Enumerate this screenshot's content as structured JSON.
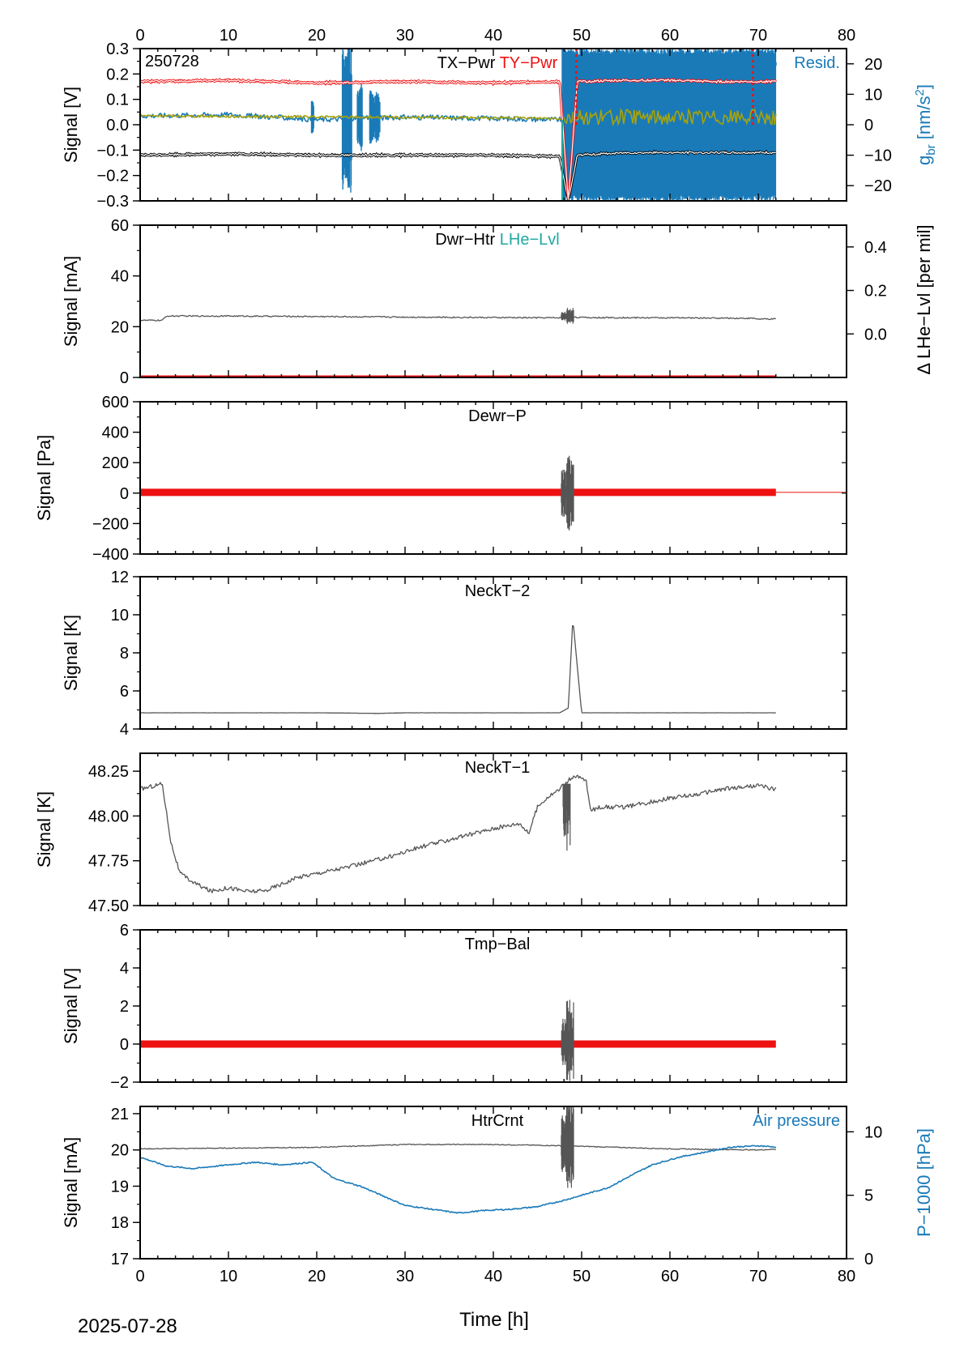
{
  "figure": {
    "date_label": "2025-07-28",
    "x_label": "Time [h]",
    "x_ticks": [
      0,
      10,
      20,
      30,
      40,
      50,
      60,
      70,
      80
    ],
    "x_range": [
      0,
      80
    ],
    "colors": {
      "trace": "#555555",
      "red": "#ee1111",
      "blue": "#1a7ab8",
      "olive": "#a6a30c",
      "teal": "#20a8a0",
      "black": "#000000"
    }
  },
  "chart_data": [
    {
      "type": "line",
      "id": "p1",
      "ylabel": "Signal [V]",
      "ylim": [
        -0.3,
        0.3
      ],
      "yticks": [
        -0.3,
        -0.2,
        -0.1,
        0.0,
        0.1,
        0.2,
        0.3
      ],
      "corner_label": "250728",
      "title_parts": [
        "TX−Pwr",
        "TY−Pwr"
      ],
      "right_legend": "Resid.",
      "y2label": "gbr [nm/s2]",
      "y2label_main": "g",
      "y2label_sub": "br",
      "y2label_unit_pre": " [nm/s",
      "y2label_unit_sup": "2",
      "y2label_unit_post": "]",
      "y2lim": [
        -25,
        25
      ],
      "y2ticks": [
        -20,
        -10,
        0,
        10,
        20
      ],
      "series": [
        {
          "name": "TX−Pwr",
          "x": [
            0,
            10,
            20,
            30,
            40,
            47.5,
            48.5,
            49.5,
            55,
            60,
            65,
            70,
            72
          ],
          "values": [
            -0.12,
            -0.115,
            -0.12,
            -0.12,
            -0.12,
            -0.125,
            -0.3,
            -0.12,
            -0.11,
            -0.11,
            -0.11,
            -0.11,
            -0.11
          ]
        },
        {
          "name": "TY−Pwr",
          "x": [
            0,
            10,
            20,
            30,
            40,
            47.5,
            48.5,
            49.5,
            55,
            60,
            65,
            70,
            72
          ],
          "values": [
            0.17,
            0.175,
            0.165,
            0.17,
            0.165,
            0.17,
            -0.3,
            0.17,
            0.175,
            0.175,
            0.17,
            0.17,
            0.17
          ]
        },
        {
          "name": "Resid.",
          "x": [
            0,
            10,
            20,
            30,
            40,
            47.5,
            72
          ],
          "values": [
            0.035,
            0.04,
            0.02,
            0.03,
            0.025,
            0.02,
            0.0
          ]
        }
      ]
    },
    {
      "type": "line",
      "id": "p2",
      "ylabel": "Signal [mA]",
      "ylim": [
        0,
        60
      ],
      "yticks": [
        0,
        20,
        40,
        60
      ],
      "title_parts": [
        "Dwr−Htr",
        "LHe−Lvl"
      ],
      "y2label": "Δ LHe−Lvl [per mil]",
      "y2lim": [
        -0.2,
        0.5
      ],
      "y2ticks": [
        0.0,
        0.2,
        0.4
      ],
      "series": [
        {
          "name": "Dwr−Htr",
          "x": [
            0,
            2.5,
            3,
            10,
            20,
            30,
            40,
            47,
            48,
            49,
            50,
            60,
            69.5,
            70,
            72
          ],
          "values": [
            22.5,
            22.5,
            24.2,
            24.2,
            24,
            23.8,
            23.6,
            23.5,
            23.5,
            23.8,
            23.6,
            23.5,
            23.3,
            23,
            23
          ]
        },
        {
          "name": "LHe−Lvl",
          "x": [
            0,
            72
          ],
          "values": [
            0.5,
            0.5
          ]
        }
      ]
    },
    {
      "type": "line",
      "id": "p3",
      "ylabel": "Signal [Pa]",
      "ylim": [
        -400,
        600
      ],
      "yticks": [
        -400,
        -200,
        0,
        200,
        400,
        600
      ],
      "title_parts": [
        "Dewr−P"
      ],
      "series": [
        {
          "name": "Dewr−P",
          "x": [
            0,
            10,
            20,
            30,
            40,
            47,
            50,
            60,
            69,
            70,
            72
          ],
          "values": [
            5,
            5,
            5,
            5,
            5,
            5,
            5,
            5,
            5,
            5,
            5
          ]
        }
      ]
    },
    {
      "type": "line",
      "id": "p4",
      "ylabel": "Signal [K]",
      "ylim": [
        4,
        12
      ],
      "yticks": [
        4,
        6,
        8,
        10,
        12
      ],
      "title_parts": [
        "NeckT−2"
      ],
      "series": [
        {
          "name": "NeckT−2",
          "x": [
            0,
            10,
            20,
            27,
            30,
            40,
            47.5,
            48.5,
            49,
            50,
            55,
            60,
            72
          ],
          "values": [
            4.85,
            4.85,
            4.85,
            4.82,
            4.85,
            4.85,
            4.85,
            5.1,
            9.8,
            4.85,
            4.85,
            4.85,
            4.85
          ]
        }
      ]
    },
    {
      "type": "line",
      "id": "p5",
      "ylabel": "Signal [K]",
      "ylim": [
        47.5,
        48.35
      ],
      "yticks": [
        47.5,
        47.75,
        48.0,
        48.25
      ],
      "title_parts": [
        "NeckT−1"
      ],
      "series": [
        {
          "name": "NeckT−1",
          "x": [
            0,
            2.5,
            3.5,
            4.5,
            6,
            8,
            10,
            12,
            14,
            16,
            18,
            20,
            24,
            28,
            32,
            36,
            40,
            43,
            44,
            44.5,
            45,
            46,
            47.5,
            48.5,
            49.5,
            50.5,
            51,
            52,
            55,
            58,
            60,
            63,
            66,
            70,
            72
          ],
          "values": [
            48.15,
            48.18,
            47.85,
            47.68,
            47.63,
            47.58,
            47.6,
            47.58,
            47.58,
            47.62,
            47.66,
            47.68,
            47.72,
            47.77,
            47.83,
            47.88,
            47.93,
            47.96,
            47.9,
            47.98,
            48.05,
            48.1,
            48.15,
            48.2,
            48.22,
            48.2,
            48.03,
            48.05,
            48.05,
            48.08,
            48.1,
            48.12,
            48.15,
            48.17,
            48.15
          ]
        }
      ]
    },
    {
      "type": "line",
      "id": "p6",
      "ylabel": "Signal [V]",
      "ylim": [
        -2,
        6
      ],
      "yticks": [
        -2,
        0,
        2,
        4,
        6
      ],
      "title_parts": [
        "Tmp−Bal"
      ],
      "series": [
        {
          "name": "Tmp−Bal",
          "x": [
            0,
            72
          ],
          "values": [
            0,
            0
          ]
        }
      ]
    },
    {
      "type": "line",
      "id": "p7",
      "ylabel": "Signal [mA]",
      "ylim": [
        17,
        21.2
      ],
      "yticks": [
        17,
        18,
        19,
        20,
        21
      ],
      "title_parts": [
        "HtrCrnt"
      ],
      "right_legend": "Air pressure",
      "y2label": "P−1000 [hPa]",
      "y2lim": [
        0,
        12
      ],
      "y2ticks": [
        0,
        5,
        10
      ],
      "series": [
        {
          "name": "HtrCrnt",
          "x": [
            0,
            10,
            20,
            30,
            40,
            47,
            50,
            60,
            70,
            72
          ],
          "values": [
            20.03,
            20.05,
            20.07,
            20.15,
            20.15,
            20.12,
            20.1,
            20.03,
            20.0,
            20.02
          ]
        },
        {
          "name": "Air pressure",
          "x": [
            0,
            3,
            6,
            10,
            13,
            16,
            19.5,
            22,
            25,
            28,
            30,
            33,
            36,
            39,
            42,
            45,
            48,
            50,
            53,
            56,
            58,
            61,
            64,
            67,
            70,
            72
          ],
          "values": [
            8.0,
            7.3,
            7.1,
            7.4,
            7.6,
            7.4,
            7.6,
            6.3,
            5.7,
            4.8,
            4.2,
            3.9,
            3.6,
            3.8,
            3.9,
            4.1,
            4.6,
            5.0,
            5.6,
            6.7,
            7.4,
            8.0,
            8.4,
            8.8,
            8.9,
            8.8
          ]
        }
      ]
    }
  ]
}
